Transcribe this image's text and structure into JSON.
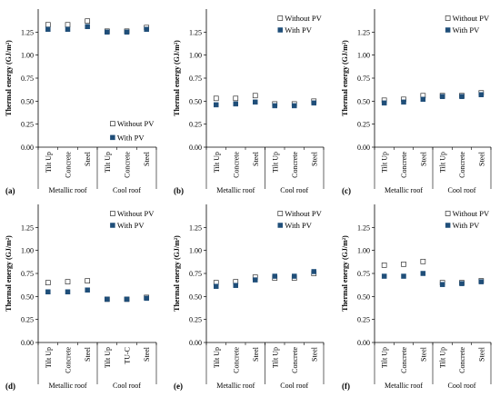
{
  "colors": {
    "with_pv": "#1f4e79",
    "without_pv_fill": "#ffffff",
    "without_pv_stroke": "#333333",
    "axis": "#000000"
  },
  "chart_data": [
    {
      "type": "scatter",
      "panel_label": "(a)",
      "ylabel": "Thermal energy (GJ/m²)",
      "ylim": [
        0,
        1.5
      ],
      "yticks": [
        "0.00",
        "0.25",
        "0.50",
        "0.75",
        "1.00",
        "1.25"
      ],
      "categories": [
        "Tilt Up",
        "Concrete",
        "Steel",
        "Tilt Up",
        "Concrete",
        "Steel"
      ],
      "groups": [
        "Metallic roof",
        "Cool roof"
      ],
      "legend": {
        "position": "lower-right",
        "entries": [
          "Without PV",
          "With PV"
        ]
      },
      "series": [
        {
          "name": "Without PV",
          "values": [
            1.33,
            1.33,
            1.37,
            1.26,
            1.26,
            1.3
          ]
        },
        {
          "name": "With PV",
          "values": [
            1.28,
            1.28,
            1.31,
            1.25,
            1.25,
            1.28
          ]
        }
      ]
    },
    {
      "type": "scatter",
      "panel_label": "(b)",
      "ylabel": "Thermal energy (GJ/m²)",
      "ylim": [
        0,
        1.5
      ],
      "yticks": [
        "0.00",
        "0.25",
        "0.50",
        "0.75",
        "1.00",
        "1.25"
      ],
      "categories": [
        "Tilt Up",
        "Concrete",
        "Steel",
        "Tilt Up",
        "Concrete",
        "Steel"
      ],
      "groups": [
        "Metallic roof",
        "Cool roof"
      ],
      "legend": {
        "position": "top-right",
        "entries": [
          "Without PV",
          "With PV"
        ]
      },
      "series": [
        {
          "name": "Without PV",
          "values": [
            0.53,
            0.53,
            0.56,
            0.47,
            0.47,
            0.5
          ]
        },
        {
          "name": "With PV",
          "values": [
            0.46,
            0.47,
            0.49,
            0.45,
            0.45,
            0.48
          ]
        }
      ]
    },
    {
      "type": "scatter",
      "panel_label": "(c)",
      "ylabel": "Thermal energy (GJ/m²)",
      "ylim": [
        0,
        1.5
      ],
      "yticks": [
        "0.00",
        "0.25",
        "0.50",
        "0.75",
        "1.00",
        "1.25"
      ],
      "categories": [
        "Tilt Up",
        "Concrete",
        "Steel",
        "Tilt Up",
        "Concrete",
        "Steel"
      ],
      "groups": [
        "Metallic roof",
        "Cool roof"
      ],
      "legend": {
        "position": "top-right",
        "entries": [
          "Without PV",
          "With PV"
        ]
      },
      "series": [
        {
          "name": "Without PV",
          "values": [
            0.51,
            0.52,
            0.56,
            0.56,
            0.56,
            0.59
          ]
        },
        {
          "name": "With PV",
          "values": [
            0.48,
            0.49,
            0.52,
            0.55,
            0.55,
            0.57
          ]
        }
      ]
    },
    {
      "type": "scatter",
      "panel_label": "(d)",
      "ylabel": "Thermal energy (GJ/m²)",
      "ylim": [
        0,
        1.5
      ],
      "yticks": [
        "0.00",
        "0.25",
        "0.50",
        "0.75",
        "1.00",
        "1.25"
      ],
      "categories": [
        "Tilt Up",
        "Concrete",
        "Steel",
        "Tilt Up",
        "TU-C",
        "Steel"
      ],
      "groups": [
        "Metallic roof",
        "Cool roof"
      ],
      "legend": {
        "position": "top-right",
        "entries": [
          "Without PV",
          "With PV"
        ]
      },
      "series": [
        {
          "name": "Without PV",
          "values": [
            0.65,
            0.66,
            0.67,
            0.47,
            0.47,
            0.49
          ]
        },
        {
          "name": "With PV",
          "values": [
            0.55,
            0.55,
            0.57,
            0.47,
            0.47,
            0.48
          ]
        }
      ]
    },
    {
      "type": "scatter",
      "panel_label": "(e)",
      "ylabel": "Thermal energy (GJ/m²)",
      "ylim": [
        0,
        1.5
      ],
      "yticks": [
        "0.00",
        "0.25",
        "0.50",
        "0.75",
        "1.00",
        "1.25"
      ],
      "categories": [
        "Tilt Up",
        "Concrete",
        "Steel",
        "Tilt Up",
        "Concrete",
        "Steel"
      ],
      "groups": [
        "Metallic roof",
        "Cool roof"
      ],
      "legend": {
        "position": "top-right",
        "entries": [
          "Without PV",
          "With PV"
        ]
      },
      "series": [
        {
          "name": "Without PV",
          "values": [
            0.65,
            0.66,
            0.71,
            0.7,
            0.7,
            0.75
          ]
        },
        {
          "name": "With PV",
          "values": [
            0.61,
            0.62,
            0.68,
            0.72,
            0.72,
            0.77
          ]
        }
      ]
    },
    {
      "type": "scatter",
      "panel_label": "(f)",
      "ylabel": "Thermal energy (GJ/m²)",
      "ylim": [
        0,
        1.5
      ],
      "yticks": [
        "0.00",
        "0.25",
        "0.50",
        "0.75",
        "1.00",
        "1.25"
      ],
      "categories": [
        "Tilt Up",
        "Concrete",
        "Steel",
        "Tilt Up",
        "Concrete",
        "Steel"
      ],
      "groups": [
        "Metallic roof",
        "Cool roof"
      ],
      "legend": {
        "position": "top-right",
        "entries": [
          "Without PV",
          "With PV"
        ]
      },
      "series": [
        {
          "name": "Without PV",
          "values": [
            0.84,
            0.85,
            0.88,
            0.65,
            0.65,
            0.67
          ]
        },
        {
          "name": "With PV",
          "values": [
            0.72,
            0.72,
            0.75,
            0.63,
            0.64,
            0.66
          ]
        }
      ]
    }
  ]
}
